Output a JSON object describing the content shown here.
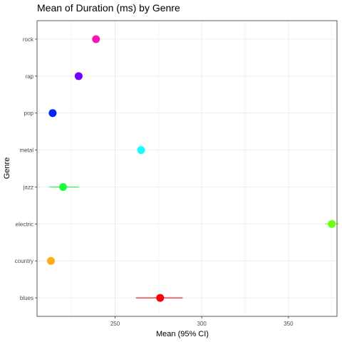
{
  "chart_data": {
    "type": "scatter",
    "title": "Mean of Duration (ms) by Genre",
    "xlabel": "Mean (95% CI)",
    "ylabel": "Genre",
    "xlim": [
      205,
      378
    ],
    "x_ticks": [
      250,
      300,
      350
    ],
    "categories": [
      "blues",
      "country",
      "electric",
      "jazz",
      "metal",
      "pop",
      "rap",
      "rock"
    ],
    "series": [
      {
        "points": [
          {
            "genre": "blues",
            "mean": 276,
            "ci_low": 262,
            "ci_high": 289,
            "color": "#f8000a"
          },
          {
            "genre": "country",
            "mean": 213,
            "ci_low": 212,
            "ci_high": 214,
            "color": "#ffad14"
          },
          {
            "genre": "electric",
            "mean": 375,
            "ci_low": 371,
            "ci_high": 379,
            "color": "#6cff14"
          },
          {
            "genre": "jazz",
            "mean": 220,
            "ci_low": 212,
            "ci_high": 229,
            "color": "#1bff3e"
          },
          {
            "genre": "metal",
            "mean": 265,
            "ci_low": 263,
            "ci_high": 267,
            "color": "#14ffff"
          },
          {
            "genre": "pop",
            "mean": 214,
            "ci_low": 212,
            "ci_high": 216,
            "color": "#0024ff"
          },
          {
            "genre": "rap",
            "mean": 229,
            "ci_low": 227,
            "ci_high": 231,
            "color": "#7300ff"
          },
          {
            "genre": "rock",
            "mean": 239,
            "ci_low": 237,
            "ci_high": 241,
            "color": "#ff14b4"
          }
        ]
      }
    ],
    "grid": true,
    "legend": "none"
  }
}
